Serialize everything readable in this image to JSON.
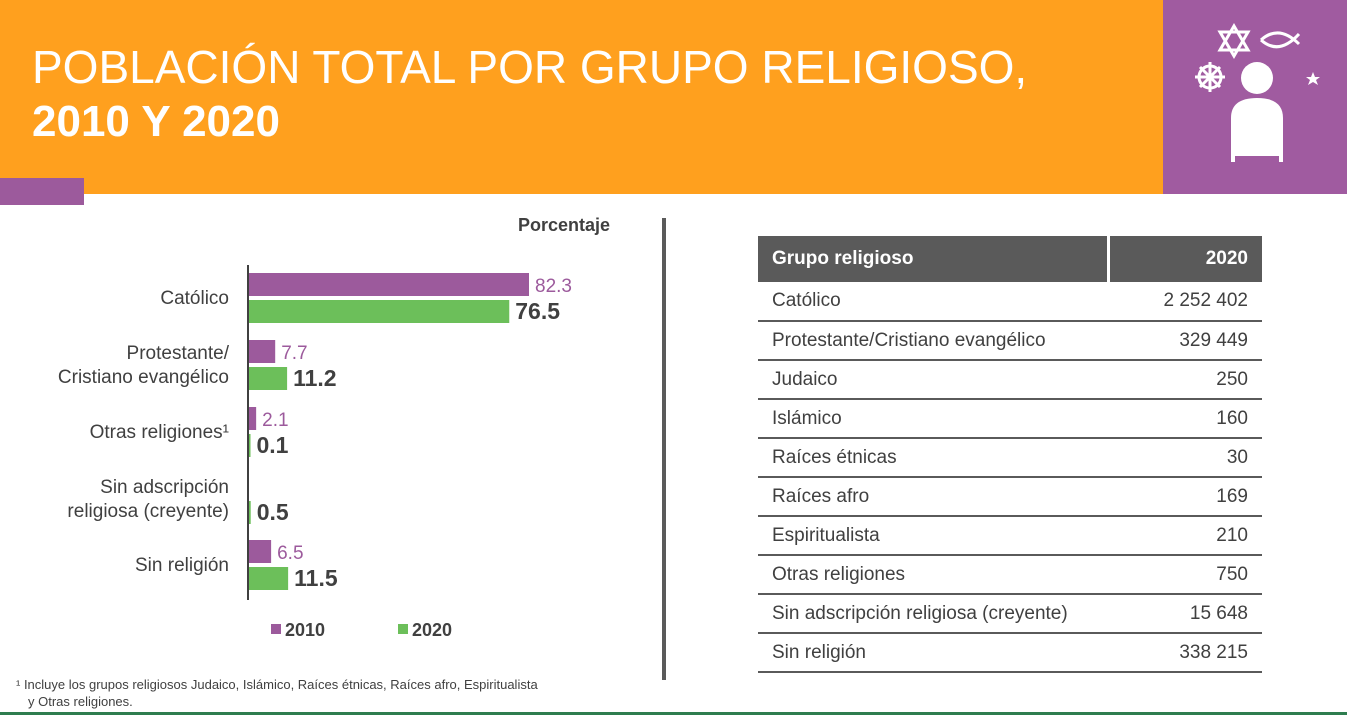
{
  "header": {
    "title_line1": "POBLACIÓN TOTAL POR GRUPO RELIGIOSO,",
    "title_line2": "2010 Y 2020",
    "brand_orange": "#ffa01e",
    "brand_purple": "#a05ba0"
  },
  "icons": [
    "star-of-david-icon",
    "ichthys-fish-icon",
    "dharma-wheel-icon",
    "crescent-star-icon",
    "person-icon"
  ],
  "chart_data": {
    "type": "bar",
    "orientation": "horizontal",
    "unit_label": "Porcentaje",
    "categories": [
      [
        "Católico"
      ],
      [
        "Protestante/",
        "Cristiano evangélico"
      ],
      [
        "Otras religiones¹"
      ],
      [
        "Sin adscripción",
        "religiosa (creyente)"
      ],
      [
        "Sin religión"
      ]
    ],
    "series": [
      {
        "name": "2010",
        "color": "#9c5a9c",
        "values": [
          82.3,
          7.7,
          2.1,
          null,
          6.5
        ],
        "labels": [
          "82.3",
          "7.7",
          "2.1",
          "",
          "6.5"
        ]
      },
      {
        "name": "2020",
        "color": "#6cbf5a",
        "values": [
          76.5,
          11.2,
          0.1,
          0.5,
          11.5
        ],
        "labels": [
          "76.5",
          "11.2",
          "0.1",
          "0.5",
          "11.5"
        ]
      }
    ],
    "legend_position": "bottom",
    "grid": false
  },
  "table": {
    "headers": [
      "Grupo religioso",
      "2020"
    ],
    "rows": [
      [
        "Católico",
        "2 252 402"
      ],
      [
        "Protestante/Cristiano evangélico",
        "329 449"
      ],
      [
        "Judaico",
        "250"
      ],
      [
        "Islámico",
        "160"
      ],
      [
        "Raíces étnicas",
        "30"
      ],
      [
        "Raíces afro",
        "169"
      ],
      [
        "Espiritualista",
        "210"
      ],
      [
        "Otras religiones",
        "750"
      ],
      [
        "Sin adscripción religiosa (creyente)",
        "15 648"
      ],
      [
        "Sin religión",
        "338 215"
      ]
    ]
  },
  "footnote": {
    "line1": "¹ Incluye los grupos religiosos Judaico, Islámico, Raíces étnicas, Raíces afro, Espiritualista",
    "line2": "y Otras religiones."
  }
}
